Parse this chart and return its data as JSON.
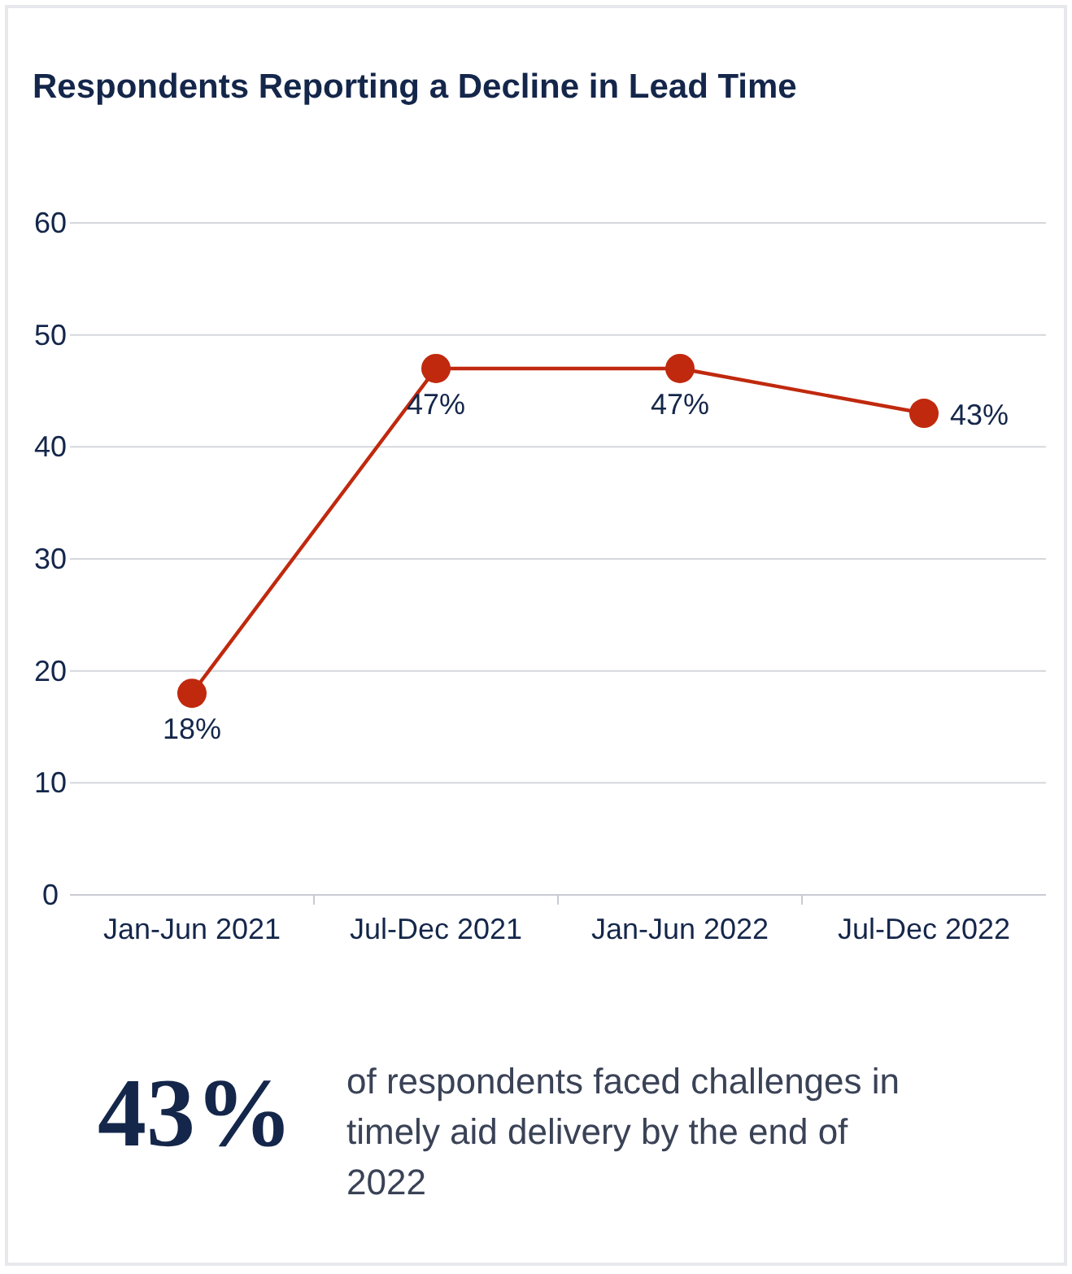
{
  "chart_data": {
    "type": "line",
    "title": "Respondents Reporting a Decline in Lead Time",
    "categories": [
      "Jan-Jun 2021",
      "Jul-Dec 2021",
      "Jan-Jun 2022",
      "Jul-Dec 2022"
    ],
    "series": [
      {
        "color": "#c0290e",
        "values": [
          18,
          47,
          47,
          43
        ],
        "value_labels": [
          "18%",
          "47%",
          "47%",
          "43%"
        ]
      }
    ],
    "ylim": [
      0,
      60
    ],
    "yticks": [
      0,
      10,
      20,
      30,
      40,
      50,
      60
    ],
    "grid": "y",
    "marker": "circle",
    "line_style": "solid",
    "annotations": [
      "43%",
      "of respondents faced challenges in timely aid delivery by the end of 2022"
    ]
  }
}
